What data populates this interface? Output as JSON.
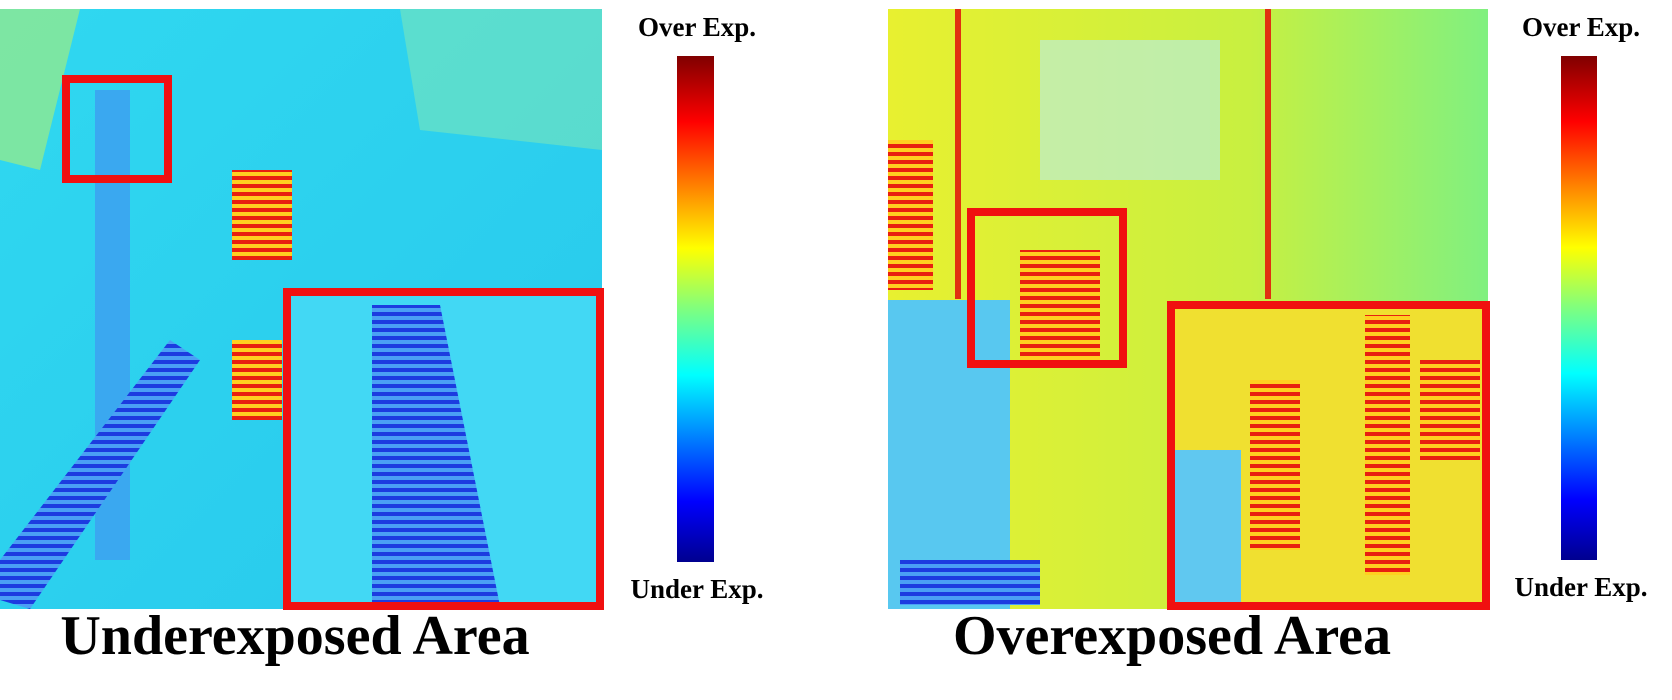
{
  "panels": [
    {
      "title": "Underexposed Area",
      "scale_top": "Over Exp.",
      "scale_bottom": "Under Exp."
    },
    {
      "title": "Overexposed Area",
      "scale_top": "Over Exp.",
      "scale_bottom": "Under Exp."
    }
  ]
}
